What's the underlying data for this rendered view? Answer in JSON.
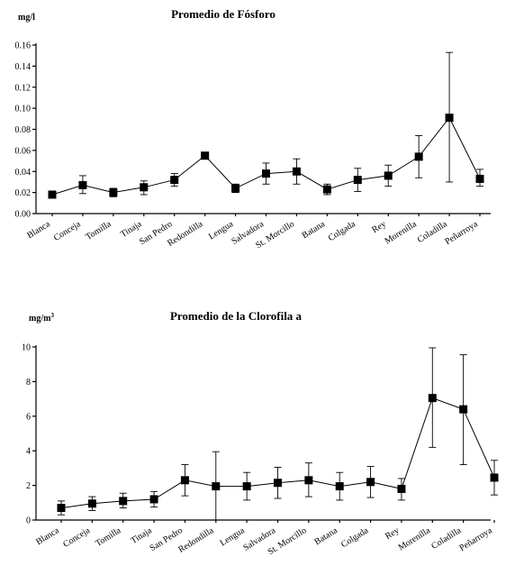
{
  "categories": [
    "Blanca",
    "Conceja",
    "Tomilla",
    "Tinaja",
    "San Pedro",
    "Redondilla",
    "Lengua",
    "Salvadora",
    "St. Morcillo",
    "Batana",
    "Colgada",
    "Rey",
    "Morenilla",
    "Coladilla",
    "Peñarroya"
  ],
  "chart_data": [
    {
      "type": "line",
      "title": "Promedio de Fósforo",
      "ylabel": "mg/l",
      "ylabel_sup": "",
      "ylim": [
        0,
        0.16
      ],
      "yticks": [
        0.0,
        0.02,
        0.04,
        0.06,
        0.08,
        0.1,
        0.12,
        0.14,
        0.16
      ],
      "ytick_labels": [
        "0.00",
        "0.02",
        "0.04",
        "0.06",
        "0.08",
        "0.10",
        "0.12",
        "0.14",
        "0.16"
      ],
      "x": [
        "Blanca",
        "Conceja",
        "Tomilla",
        "Tinaja",
        "San Pedro",
        "Redondilla",
        "Lengua",
        "Salvadora",
        "St. Morcillo",
        "Batana",
        "Colgada",
        "Rey",
        "Morenilla",
        "Coladilla",
        "Peñarroya"
      ],
      "values": [
        0.018,
        0.027,
        0.02,
        0.025,
        0.032,
        0.055,
        0.024,
        0.038,
        0.04,
        0.023,
        0.032,
        0.036,
        0.054,
        0.091,
        0.033
      ],
      "err_low": [
        0.015,
        0.019,
        0.016,
        0.018,
        0.026,
        0.055,
        0.02,
        0.028,
        0.028,
        0.018,
        0.021,
        0.026,
        0.034,
        0.03,
        0.026
      ],
      "err_high": [
        0.021,
        0.036,
        0.024,
        0.031,
        0.038,
        0.055,
        0.028,
        0.048,
        0.052,
        0.028,
        0.043,
        0.046,
        0.074,
        0.153,
        0.042
      ],
      "legend": "none",
      "grid": false
    },
    {
      "type": "line",
      "title": "Promedio de la Clorofila a",
      "ylabel": "mg/m",
      "ylabel_sup": "3",
      "ylim": [
        0,
        10
      ],
      "yticks": [
        0,
        2,
        4,
        6,
        8,
        10
      ],
      "ytick_labels": [
        "0",
        "2",
        "4",
        "6",
        "8",
        "10"
      ],
      "x": [
        "Blanca",
        "Conceja",
        "Tomilla",
        "Tinaja",
        "San Pedro",
        "Redondilla",
        "Lengua",
        "Salvadora",
        "St. Morcillo",
        "Batana",
        "Colgada",
        "Rey",
        "Morenilla",
        "Coladilla",
        "Peñarroya"
      ],
      "values": [
        0.7,
        0.95,
        1.1,
        1.2,
        2.3,
        1.95,
        1.95,
        2.15,
        2.3,
        1.95,
        2.2,
        1.8,
        7.05,
        6.4,
        2.45
      ],
      "err_low": [
        0.3,
        0.55,
        0.7,
        0.75,
        1.4,
        0.0,
        1.15,
        1.25,
        1.35,
        1.15,
        1.3,
        1.15,
        4.2,
        3.2,
        1.45
      ],
      "err_high": [
        1.1,
        1.35,
        1.55,
        1.65,
        3.2,
        3.95,
        2.75,
        3.05,
        3.3,
        2.75,
        3.1,
        2.4,
        9.95,
        9.55,
        3.45
      ],
      "legend": "none",
      "grid": false
    }
  ]
}
